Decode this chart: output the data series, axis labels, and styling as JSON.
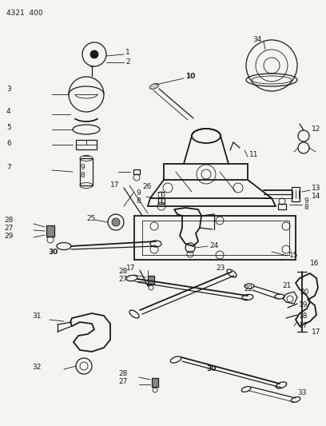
{
  "bg": "#f5f5f0",
  "lc": "#1a1a1a",
  "fig_w": 4.08,
  "fig_h": 5.33,
  "dpi": 100,
  "header": "4321  400"
}
